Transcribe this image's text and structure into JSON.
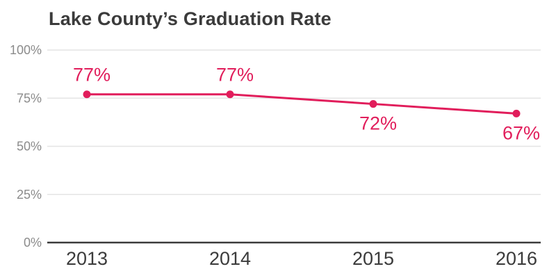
{
  "chart_data": {
    "type": "line",
    "title": "Lake County’s Graduation Rate",
    "categories": [
      "2013",
      "2014",
      "2015",
      "2016"
    ],
    "series": [
      {
        "name": "Graduation Rate",
        "values": [
          77,
          77,
          72,
          67
        ],
        "data_labels": [
          "77%",
          "77%",
          "72%",
          "67%"
        ],
        "label_positions": [
          "above",
          "above",
          "below",
          "below"
        ]
      }
    ],
    "xlabel": "",
    "ylabel": "",
    "y_ticks": [
      0,
      25,
      50,
      75,
      100
    ],
    "y_tick_labels": [
      "0%",
      "25%",
      "50%",
      "75%",
      "100%"
    ],
    "ylim": [
      0,
      100
    ],
    "grid": true,
    "legend": false
  },
  "colors": {
    "line": "#e11d5b",
    "point": "#e11d5b",
    "data_label": "#e11d5b",
    "title": "#3b3b3b",
    "x_tick_label": "#3b3b3b",
    "y_tick_label": "#8b8b8b",
    "gridline": "#e4e4e4",
    "baseline": "#3b3b3b",
    "background": "#ffffff"
  }
}
